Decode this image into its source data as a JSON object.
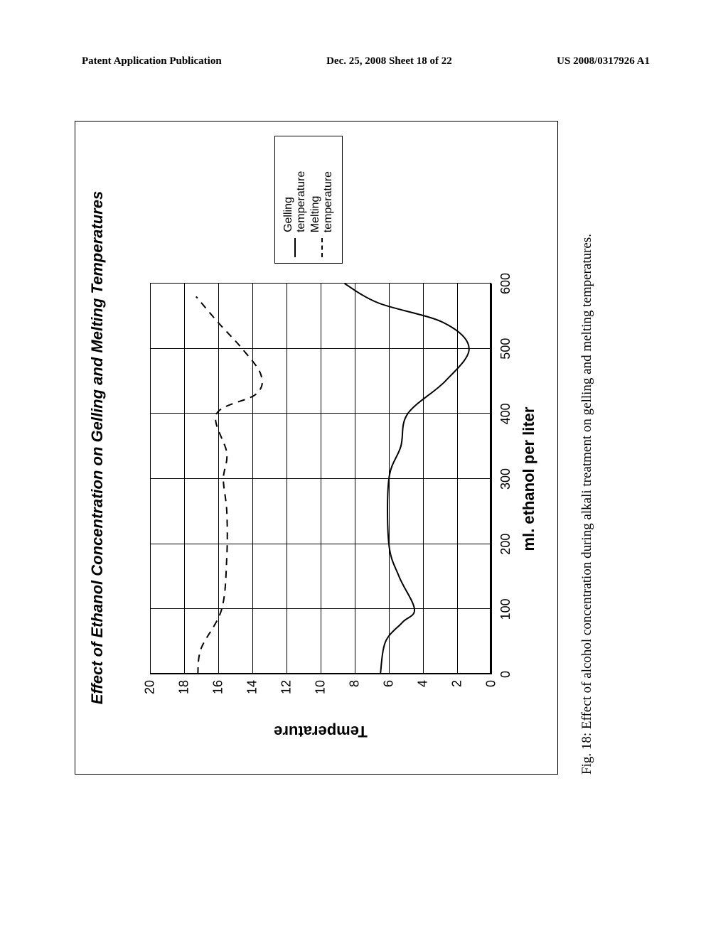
{
  "header": {
    "left": "Patent Application Publication",
    "center": "Dec. 25, 2008  Sheet 18 of 22",
    "right": "US 2008/0317926 A1"
  },
  "chart": {
    "type": "line",
    "title": "Effect of Ethanol Concentration on Gelling and Melting Temperatures",
    "title_fontsize": 22,
    "title_bold": true,
    "title_italic": true,
    "xlabel": "ml. ethanol per liter",
    "ylabel": "Temperature",
    "label_fontsize": 22,
    "label_bold": true,
    "tick_fontsize": 18,
    "xlim": [
      0,
      600
    ],
    "ylim": [
      0,
      20
    ],
    "xtick_step": 100,
    "ytick_step": 2,
    "xticks": [
      0,
      100,
      200,
      300,
      400,
      500,
      600
    ],
    "yticks": [
      0,
      2,
      4,
      6,
      8,
      10,
      12,
      14,
      16,
      18,
      20
    ],
    "grid_color": "#000000",
    "background_color": "#ffffff",
    "border_color": "#000000",
    "line_color": "#000000",
    "line_width": 2,
    "series": [
      {
        "name": "Gelling temperature",
        "dash": "solid",
        "x": [
          0,
          50,
          80,
          100,
          150,
          200,
          300,
          350,
          400,
          450,
          500,
          540,
          570,
          600
        ],
        "y": [
          6.5,
          6.2,
          5.2,
          4.5,
          5.4,
          6.0,
          6.0,
          5.3,
          4.9,
          2.7,
          1.3,
          2.8,
          6.6,
          8.6
        ]
      },
      {
        "name": "Melting temperature",
        "dash": "dashed",
        "x": [
          0,
          40,
          100,
          180,
          250,
          300,
          340,
          400,
          430,
          460,
          500,
          540,
          580
        ],
        "y": [
          17.2,
          17.0,
          15.8,
          15.5,
          15.5,
          15.7,
          15.5,
          16.1,
          13.8,
          13.5,
          14.6,
          16.0,
          17.3
        ]
      }
    ],
    "legend": {
      "position": "right-center",
      "fontsize": 16,
      "items": [
        {
          "label": "Gelling temperature",
          "dash": "solid"
        },
        {
          "label": "Melting temperature",
          "dash": "dashed"
        }
      ]
    }
  },
  "caption": "Fig. 18: Effect of alcohol concentration during alkali treatment on gelling and melting temperatures."
}
